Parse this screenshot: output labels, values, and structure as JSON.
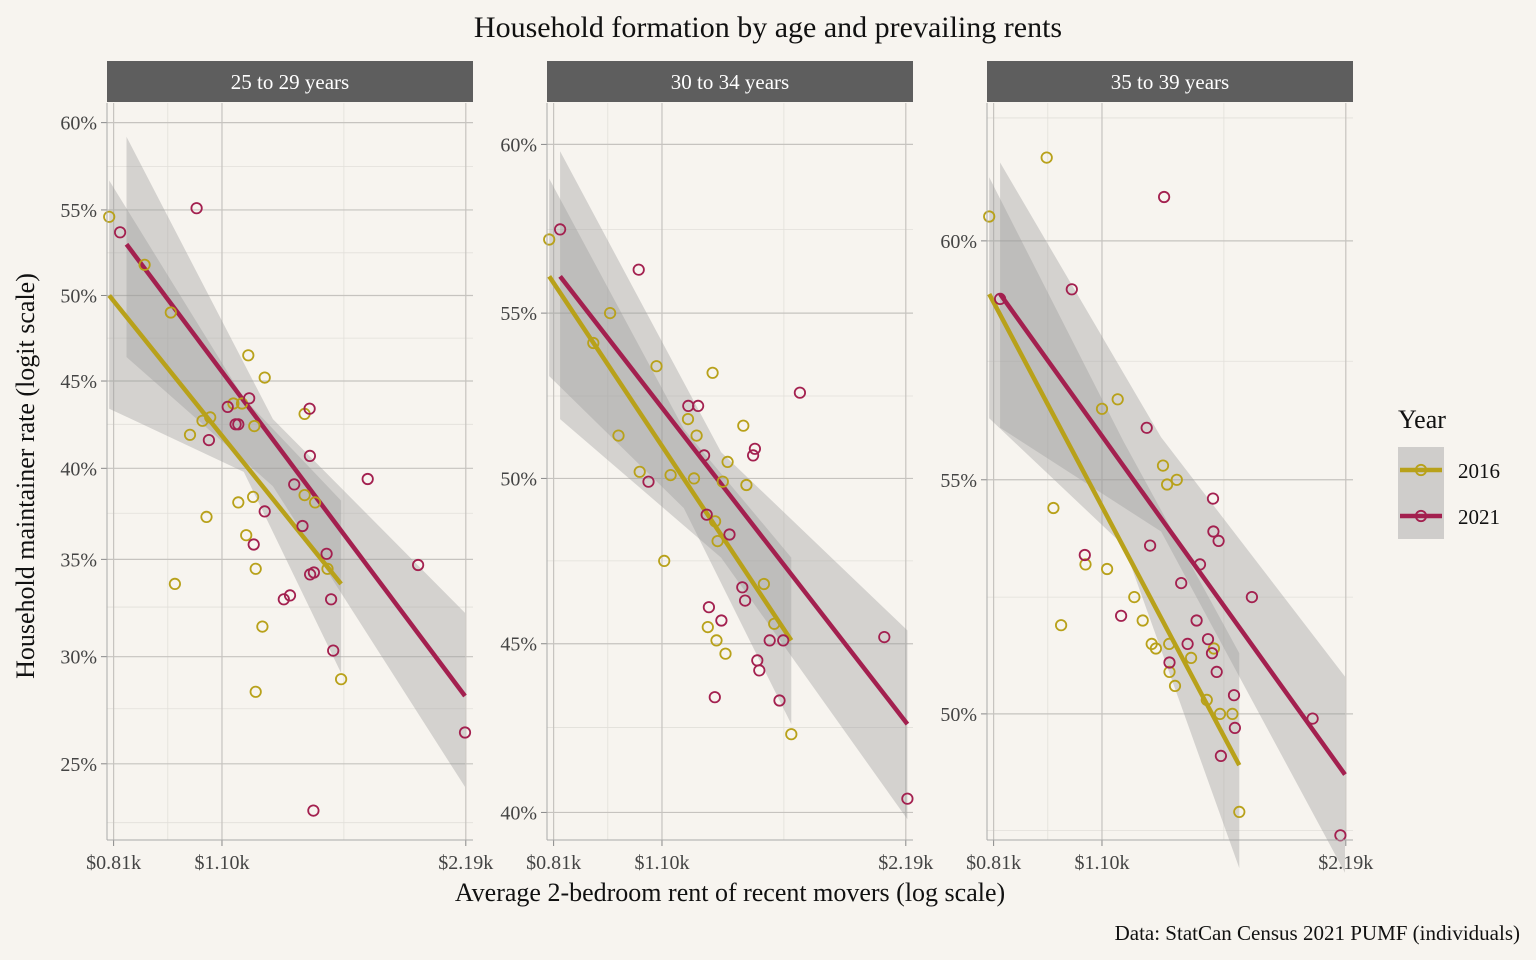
{
  "title": "Household formation by age and prevailing rents",
  "caption": "Data: StatCan Census 2021 PUMF (individuals)",
  "xlabel": "Average 2-bedroom rent of recent movers (log scale)",
  "ylabel": "Household maintainer rate (logit scale)",
  "legend": {
    "title": "Year",
    "position": "right",
    "items": [
      {
        "label": "2016",
        "color": "#b8a11a"
      },
      {
        "label": "2021",
        "color": "#a3204f"
      }
    ]
  },
  "chart_data": {
    "type": "scatter",
    "x_scale": "log",
    "y_scale": "logit",
    "x_ticks": [
      {
        "value": 0.81,
        "label": "$0.81k"
      },
      {
        "value": 1.1,
        "label": "$1.10k"
      },
      {
        "value": 2.19,
        "label": "$2.19k"
      }
    ],
    "x_range": [
      0.795,
      2.235
    ],
    "band_color": "#9a9a9a",
    "panels": [
      {
        "strip": "25 to 29 years",
        "y_range": [
          0.218,
          0.611
        ],
        "y_ticks": [
          {
            "value": 0.25,
            "label": "25%"
          },
          {
            "value": 0.3,
            "label": "30%"
          },
          {
            "value": 0.35,
            "label": "35%"
          },
          {
            "value": 0.4,
            "label": "40%"
          },
          {
            "value": 0.45,
            "label": "45%"
          },
          {
            "value": 0.5,
            "label": "50%"
          },
          {
            "value": 0.55,
            "label": "55%"
          },
          {
            "value": 0.6,
            "label": "60%"
          }
        ],
        "series": [
          {
            "name": "2016",
            "color": "#b8a11a",
            "points": [
              [
                0.8,
                0.546
              ],
              [
                0.884,
                0.518
              ],
              [
                0.952,
                0.49
              ],
              [
                0.963,
                0.337
              ],
              [
                1.005,
                0.419
              ],
              [
                1.041,
                0.427
              ],
              [
                1.053,
                0.373
              ],
              [
                1.064,
                0.429
              ],
              [
                1.136,
                0.437
              ],
              [
                1.152,
                0.381
              ],
              [
                1.164,
                0.437
              ],
              [
                1.178,
                0.363
              ],
              [
                1.185,
                0.465
              ],
              [
                1.201,
                0.384
              ],
              [
                1.205,
                0.424
              ],
              [
                1.21,
                0.345
              ],
              [
                1.21,
                0.283
              ],
              [
                1.233,
                0.315
              ],
              [
                1.241,
                0.452
              ],
              [
                1.389,
                0.431
              ],
              [
                1.389,
                0.385
              ],
              [
                1.431,
                0.381
              ],
              [
                1.482,
                0.345
              ],
              [
                1.54,
                0.289
              ]
            ],
            "fit": {
              "x": [
                0.8,
                1.54
              ],
              "y": [
                0.5,
                0.337
              ]
            },
            "band": {
              "x": [
                0.8,
                1.17,
                1.54
              ],
              "lo": [
                0.434,
                0.398,
                0.292
              ],
              "hi": [
                0.567,
                0.44,
                0.382
              ]
            }
          },
          {
            "name": "2021",
            "color": "#a3204f",
            "points": [
              [
                0.825,
                0.537
              ],
              [
                1.024,
                0.551
              ],
              [
                1.06,
                0.416
              ],
              [
                1.118,
                0.435
              ],
              [
                1.143,
                0.425
              ],
              [
                1.152,
                0.425
              ],
              [
                1.188,
                0.44
              ],
              [
                1.203,
                0.358
              ],
              [
                1.241,
                0.376
              ],
              [
                1.31,
                0.329
              ],
              [
                1.333,
                0.331
              ],
              [
                1.349,
                0.391
              ],
              [
                1.381,
                0.368
              ],
              [
                1.41,
                0.407
              ],
              [
                1.409,
                0.434
              ],
              [
                1.411,
                0.342
              ],
              [
                1.426,
                0.343
              ],
              [
                1.478,
                0.353
              ],
              [
                1.497,
                0.329
              ],
              [
                1.506,
                0.303
              ],
              [
                1.424,
                0.23
              ],
              [
                1.66,
                0.394
              ],
              [
                1.914,
                0.347
              ],
              [
                2.185,
                0.264
              ]
            ],
            "fit": {
              "x": [
                0.84,
                2.185
              ],
              "y": [
                0.53,
                0.281
              ]
            },
            "band": {
              "x": [
                0.84,
                1.27,
                2.185
              ],
              "lo": [
                0.464,
                0.39,
                0.24
              ],
              "hi": [
                0.592,
                0.428,
                0.322
              ]
            }
          }
        ]
      },
      {
        "strip": "30 to 34 years",
        "y_range": [
          0.392,
          0.612
        ],
        "y_ticks": [
          {
            "value": 0.4,
            "label": "40%"
          },
          {
            "value": 0.45,
            "label": "45%"
          },
          {
            "value": 0.5,
            "label": "50%"
          },
          {
            "value": 0.55,
            "label": "55%"
          },
          {
            "value": 0.6,
            "label": "60%"
          }
        ],
        "series": [
          {
            "name": "2016",
            "color": "#b8a11a",
            "points": [
              [
                0.8,
                0.572
              ],
              [
                0.906,
                0.541
              ],
              [
                0.95,
                0.55
              ],
              [
                0.973,
                0.513
              ],
              [
                1.033,
                0.502
              ],
              [
                1.083,
                0.534
              ],
              [
                1.107,
                0.475
              ],
              [
                1.127,
                0.501
              ],
              [
                1.184,
                0.518
              ],
              [
                1.204,
                0.5
              ],
              [
                1.213,
                0.513
              ],
              [
                1.252,
                0.455
              ],
              [
                1.269,
                0.532
              ],
              [
                1.278,
                0.487
              ],
              [
                1.283,
                0.451
              ],
              [
                1.287,
                0.481
              ],
              [
                1.306,
                0.499
              ],
              [
                1.316,
                0.447
              ],
              [
                1.324,
                0.505
              ],
              [
                1.384,
                0.516
              ],
              [
                1.396,
                0.498
              ],
              [
                1.467,
                0.468
              ],
              [
                1.51,
                0.456
              ],
              [
                1.585,
                0.423
              ]
            ],
            "fit": {
              "x": [
                0.8,
                1.585
              ],
              "y": [
                0.561,
                0.451
              ]
            },
            "band": {
              "x": [
                0.8,
                1.17,
                1.585
              ],
              "lo": [
                0.531,
                0.491,
                0.426
              ],
              "hi": [
                0.59,
                0.515,
                0.476
              ]
            }
          },
          {
            "name": "2021",
            "color": "#a3204f",
            "points": [
              [
                0.825,
                0.575
              ],
              [
                1.03,
                0.563
              ],
              [
                1.059,
                0.499
              ],
              [
                1.185,
                0.522
              ],
              [
                1.218,
                0.522
              ],
              [
                1.239,
                0.507
              ],
              [
                1.248,
                0.489
              ],
              [
                1.256,
                0.461
              ],
              [
                1.277,
                0.434
              ],
              [
                1.301,
                0.457
              ],
              [
                1.331,
                0.483
              ],
              [
                1.38,
                0.467
              ],
              [
                1.391,
                0.463
              ],
              [
                1.423,
                0.507
              ],
              [
                1.43,
                0.509
              ],
              [
                1.44,
                0.445
              ],
              [
                1.448,
                0.442
              ],
              [
                1.491,
                0.451
              ],
              [
                1.533,
                0.433
              ],
              [
                1.549,
                0.451
              ],
              [
                1.624,
                0.526
              ],
              [
                2.061,
                0.452
              ],
              [
                2.2,
                0.404
              ]
            ],
            "fit": {
              "x": [
                0.825,
                2.2
              ],
              "y": [
                0.561,
                0.426
              ]
            },
            "band": {
              "x": [
                0.825,
                1.3,
                2.2
              ],
              "lo": [
                0.518,
                0.476,
                0.398
              ],
              "hi": [
                0.598,
                0.508,
                0.454
              ]
            }
          }
        ]
      },
      {
        "strip": "35 to 39 years",
        "y_range": [
          0.473,
          0.628
        ],
        "y_ticks": [
          {
            "value": 0.5,
            "label": "50%"
          },
          {
            "value": 0.55,
            "label": "55%"
          },
          {
            "value": 0.6,
            "label": "60%"
          }
        ],
        "series": [
          {
            "name": "2016",
            "color": "#b8a11a",
            "points": [
              [
                0.8,
                0.605
              ],
              [
                0.941,
                0.617
              ],
              [
                0.959,
                0.544
              ],
              [
                0.98,
                0.519
              ],
              [
                1.05,
                0.532
              ],
              [
                1.1,
                0.565
              ],
              [
                1.116,
                0.531
              ],
              [
                1.15,
                0.567
              ],
              [
                1.205,
                0.525
              ],
              [
                1.234,
                0.52
              ],
              [
                1.266,
                0.515
              ],
              [
                1.281,
                0.514
              ],
              [
                1.307,
                0.553
              ],
              [
                1.322,
                0.549
              ],
              [
                1.33,
                0.515
              ],
              [
                1.331,
                0.509
              ],
              [
                1.352,
                0.506
              ],
              [
                1.359,
                0.55
              ],
              [
                1.415,
                0.512
              ],
              [
                1.479,
                0.503
              ],
              [
                1.509,
                0.514
              ],
              [
                1.535,
                0.5
              ],
              [
                1.59,
                0.5
              ],
              [
                1.621,
                0.479
              ]
            ],
            "fit": {
              "x": [
                0.8,
                1.621
              ],
              "y": [
                0.589,
                0.489
              ]
            },
            "band": {
              "x": [
                0.8,
                1.17,
                1.621
              ],
              "lo": [
                0.563,
                0.536,
                0.467
              ],
              "hi": [
                0.613,
                0.558,
                0.513
              ]
            }
          },
          {
            "name": "2021",
            "color": "#a3204f",
            "points": [
              [
                0.825,
                0.588
              ],
              [
                1.01,
                0.59
              ],
              [
                1.048,
                0.534
              ],
              [
                1.161,
                0.521
              ],
              [
                1.248,
                0.561
              ],
              [
                1.26,
                0.536
              ],
              [
                1.311,
                0.609
              ],
              [
                1.331,
                0.511
              ],
              [
                1.376,
                0.528
              ],
              [
                1.401,
                0.515
              ],
              [
                1.437,
                0.52
              ],
              [
                1.451,
                0.532
              ],
              [
                1.484,
                0.516
              ],
              [
                1.501,
                0.513
              ],
              [
                1.505,
                0.546
              ],
              [
                1.507,
                0.539
              ],
              [
                1.521,
                0.509
              ],
              [
                1.597,
                0.504
              ],
              [
                1.601,
                0.497
              ],
              [
                1.68,
                0.525
              ],
              [
                1.994,
                0.499
              ],
              [
                2.157,
                0.474
              ],
              [
                1.539,
                0.491
              ],
              [
                1.529,
                0.537
              ]
            ],
            "fit": {
              "x": [
                0.825,
                2.185
              ],
              "y": [
                0.589,
                0.487
              ]
            },
            "band": {
              "x": [
                0.825,
                1.3,
                2.185
              ],
              "lo": [
                0.561,
                0.539,
                0.466
              ],
              "hi": [
                0.616,
                0.559,
                0.508
              ]
            }
          }
        ]
      }
    ]
  }
}
